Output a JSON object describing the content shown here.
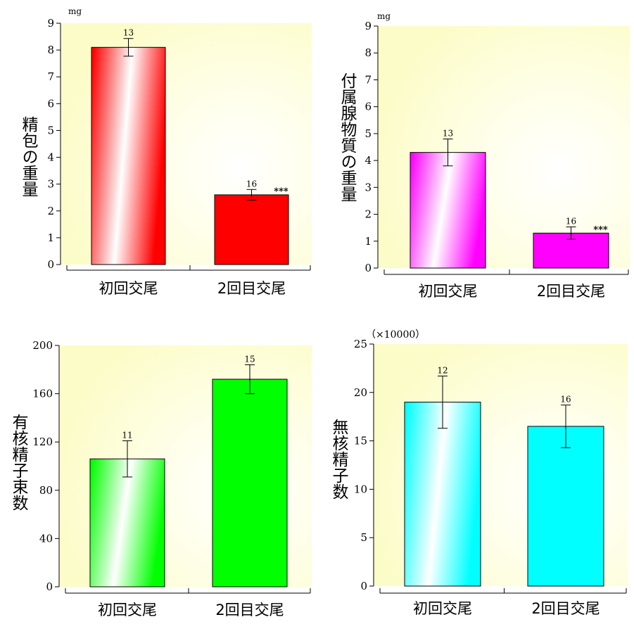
{
  "chart_data": [
    {
      "type": "bar",
      "unit": "mg",
      "ylabel": "精包の重量",
      "ylim": [
        0,
        9
      ],
      "yticks": [
        "0",
        "1",
        "2",
        "3",
        "4",
        "5",
        "6",
        "7",
        "8",
        "9"
      ],
      "categories": [
        "初回交尾",
        "2回目交尾"
      ],
      "values": [
        8.1,
        2.6
      ],
      "errors": [
        0.33,
        0.2
      ],
      "n": [
        "13",
        "16"
      ],
      "significance": [
        "",
        "***"
      ],
      "colors": [
        "#ff0000",
        "#ff0000"
      ],
      "gradient": [
        true,
        false
      ],
      "grid": false
    },
    {
      "type": "bar",
      "unit": "mg",
      "ylabel": "付属腺物質の重量",
      "ylim": [
        0,
        9
      ],
      "yticks": [
        "0",
        "1",
        "2",
        "3",
        "4",
        "5",
        "6",
        "7",
        "8",
        "9"
      ],
      "categories": [
        "初回交尾",
        "2回目交尾"
      ],
      "values": [
        4.3,
        1.3
      ],
      "errors": [
        0.5,
        0.23
      ],
      "n": [
        "13",
        "16"
      ],
      "significance": [
        "",
        "***"
      ],
      "colors": [
        "#ff00ff",
        "#ff00ff"
      ],
      "gradient": [
        true,
        false
      ],
      "grid": false
    },
    {
      "type": "bar",
      "unit": "",
      "ylabel": "有核精子束数",
      "ylim": [
        0,
        200
      ],
      "yticks": [
        "0",
        "40",
        "80",
        "120",
        "160",
        "200"
      ],
      "categories": [
        "初回交尾",
        "2回目交尾"
      ],
      "values": [
        106,
        172
      ],
      "errors": [
        15,
        12
      ],
      "n": [
        "11",
        "15"
      ],
      "significance": [
        "",
        ""
      ],
      "colors": [
        "#00ff00",
        "#00ff00"
      ],
      "gradient": [
        true,
        false
      ],
      "grid": false
    },
    {
      "type": "bar",
      "unit": "（×10000）",
      "ylabel": "無核精子数",
      "ylim": [
        0,
        25
      ],
      "yticks": [
        "0",
        "5",
        "10",
        "15",
        "20",
        "25"
      ],
      "categories": [
        "初回交尾",
        "2回目交尾"
      ],
      "values": [
        19,
        16.5
      ],
      "errors": [
        2.7,
        2.2
      ],
      "n": [
        "12",
        "16"
      ],
      "significance": [
        "",
        ""
      ],
      "colors": [
        "#00ffff",
        "#00ffff"
      ],
      "gradient": [
        true,
        false
      ],
      "grid": false
    }
  ]
}
